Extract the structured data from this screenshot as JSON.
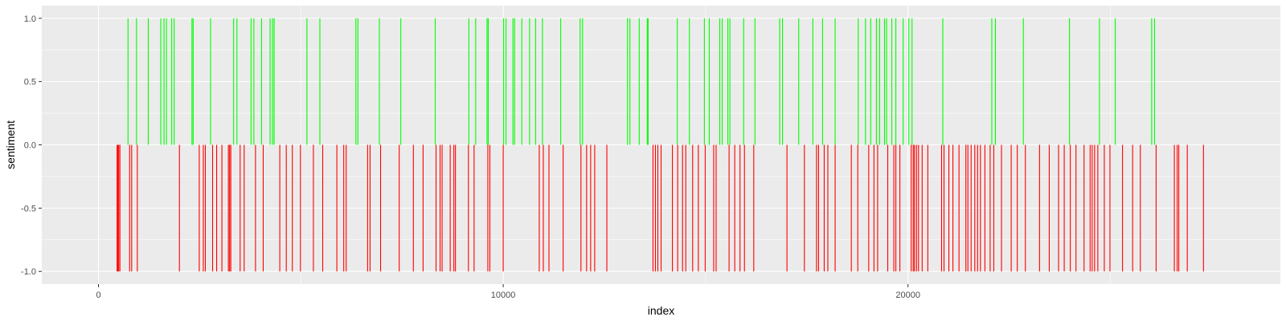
{
  "chart_data": {
    "type": "bar",
    "title": "",
    "xlabel": "index",
    "ylabel": "sentiment",
    "xlim": [
      -1400,
      29200
    ],
    "ylim": [
      -1.1,
      1.1
    ],
    "x_ticks": [
      {
        "value": 0,
        "label": "0"
      },
      {
        "value": 10000,
        "label": "10000"
      },
      {
        "value": 20000,
        "label": "20000"
      }
    ],
    "x_minor_ticks": [
      5000,
      15000,
      25000
    ],
    "y_ticks": [
      {
        "value": -1.0,
        "label": "-1.0"
      },
      {
        "value": -0.5,
        "label": "-0.5"
      },
      {
        "value": 0.0,
        "label": "0.0"
      },
      {
        "value": 0.5,
        "label": "0.5"
      },
      {
        "value": 1.0,
        "label": "1.0"
      }
    ],
    "y_minor_ticks": [
      -0.75,
      -0.25,
      0.25,
      0.75
    ],
    "grid": true,
    "legend": "none",
    "colors": {
      "panel": "#ebebeb",
      "grid": "#ffffff",
      "positive": "#00ff00",
      "negative": "#ff0000"
    },
    "series": [
      {
        "sentiment": 1,
        "color": "#00ff00",
        "x": [
          730,
          940,
          1230,
          1540,
          1620,
          1680,
          1810,
          1870,
          2310,
          2340,
          2770,
          3340,
          3420,
          3770,
          3840,
          4030,
          4240,
          4300,
          4340,
          5150,
          5470,
          6360,
          6410,
          6940,
          7470,
          8320,
          9150,
          9320,
          9600,
          9630,
          10010,
          10070,
          10240,
          10280,
          10460,
          10650,
          10800,
          10970,
          11420,
          11900,
          11960,
          13070,
          13130,
          13360,
          13560,
          13580,
          14300,
          14600,
          14970,
          15090,
          15350,
          15410,
          15550,
          15600,
          15940,
          16220,
          16830,
          16900,
          17300,
          17650,
          17890,
          18200,
          18770,
          18950,
          19080,
          19220,
          19300,
          19420,
          19470,
          19600,
          19700,
          19880,
          20020,
          20100,
          20860,
          22070,
          22160,
          22850,
          23990,
          24730,
          25120,
          26020,
          26090
        ]
      },
      {
        "sentiment": -1,
        "color": "#ff0000",
        "x": [
          460,
          480,
          500,
          530,
          770,
          820,
          960,
          2000,
          2490,
          2590,
          2640,
          2820,
          2920,
          3050,
          3210,
          3240,
          3270,
          3500,
          3600,
          3880,
          4070,
          4480,
          4640,
          4790,
          4990,
          5310,
          5540,
          5890,
          6060,
          6120,
          6650,
          6710,
          6970,
          7430,
          7780,
          8020,
          8340,
          8440,
          8490,
          8690,
          8780,
          8820,
          9140,
          9280,
          9620,
          9670,
          10000,
          10990,
          10890,
          11130,
          11480,
          11920,
          12060,
          12160,
          12260,
          12560,
          13700,
          13760,
          13820,
          13900,
          14180,
          14310,
          14430,
          14510,
          14680,
          14820,
          14990,
          15200,
          15260,
          15580,
          15720,
          15850,
          15960,
          16190,
          17010,
          17440,
          17740,
          17790,
          17930,
          18020,
          18200,
          18600,
          18760,
          19030,
          19160,
          19250,
          19500,
          19650,
          19700,
          19800,
          20080,
          20130,
          20160,
          20210,
          20260,
          20350,
          20490,
          20830,
          20890,
          21010,
          21110,
          21260,
          21430,
          21480,
          21560,
          21650,
          21720,
          21790,
          21900,
          22030,
          22120,
          22310,
          22550,
          22700,
          22900,
          23250,
          23490,
          23720,
          23860,
          24010,
          24150,
          24350,
          24500,
          24550,
          24610,
          24690,
          24850,
          24990,
          25300,
          25550,
          25740,
          26130,
          26580,
          26650,
          26690,
          26900,
          27300
        ]
      }
    ]
  }
}
